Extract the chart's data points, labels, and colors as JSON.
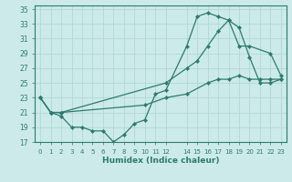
{
  "xlabel": "Humidex (Indice chaleur)",
  "xlim": [
    -0.5,
    23.5
  ],
  "ylim": [
    17,
    35.5
  ],
  "xticks": [
    0,
    1,
    2,
    3,
    4,
    5,
    6,
    7,
    8,
    9,
    10,
    11,
    12,
    14,
    15,
    16,
    17,
    18,
    19,
    20,
    21,
    22,
    23
  ],
  "yticks": [
    17,
    19,
    21,
    23,
    25,
    27,
    29,
    31,
    33,
    35
  ],
  "line_color": "#2d7a6e",
  "bg_color": "#cceaea",
  "grid_color": "#b0d8d8",
  "series": [
    {
      "x": [
        0,
        1,
        2,
        10,
        12,
        14,
        16,
        17,
        18,
        19,
        20,
        21,
        22,
        23
      ],
      "y": [
        23,
        21,
        21,
        22,
        23,
        23.5,
        25,
        25.5,
        25.5,
        26,
        25.5,
        25.5,
        25.5,
        25.5
      ]
    },
    {
      "x": [
        0,
        1,
        2,
        12,
        14,
        15,
        16,
        17,
        18,
        19,
        20,
        22,
        23
      ],
      "y": [
        23,
        21,
        21,
        25,
        27,
        28,
        30,
        32,
        33.5,
        30,
        30,
        29,
        26
      ]
    },
    {
      "x": [
        0,
        1,
        2,
        3,
        4,
        5,
        6,
        7,
        8,
        9,
        10,
        11,
        12,
        14,
        15,
        16,
        17,
        18,
        19,
        20,
        21,
        22,
        23
      ],
      "y": [
        23,
        21,
        20.5,
        19,
        19,
        18.5,
        18.5,
        17,
        18,
        19.5,
        20,
        23.5,
        24,
        30,
        34,
        34.5,
        34,
        33.5,
        32.5,
        28.5,
        25,
        25,
        25.5
      ]
    }
  ]
}
